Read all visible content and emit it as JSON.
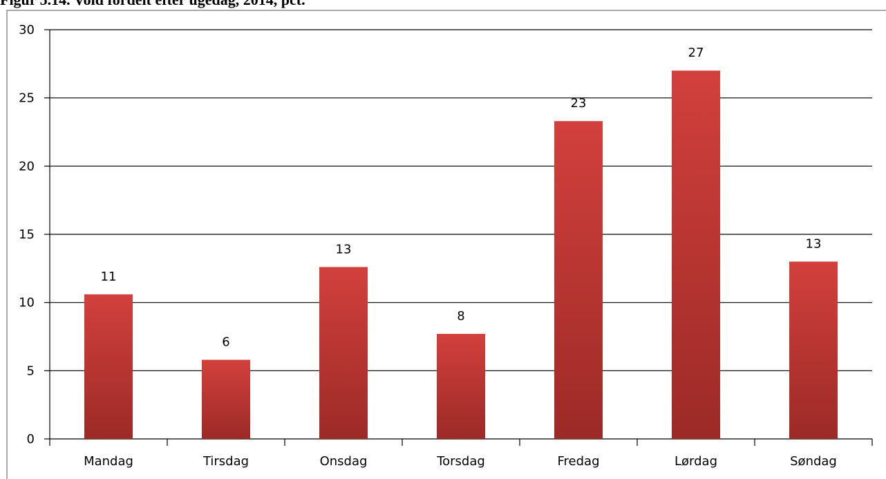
{
  "chart_data": {
    "type": "bar",
    "title": "Figur 5.14. Vold fordelt efter ugedag, 2014, pct.",
    "categories": [
      "Mandag",
      "Tirsdag",
      "Onsdag",
      "Torsdag",
      "Fredag",
      "Lørdag",
      "Søndag"
    ],
    "values": [
      10.6,
      5.8,
      12.6,
      7.7,
      23.3,
      27,
      13
    ],
    "value_labels": [
      "11",
      "6",
      "13",
      "8",
      "23",
      "27",
      "13"
    ],
    "color": "#c43a36",
    "ylim": [
      0,
      30
    ],
    "yticks": [
      0,
      5,
      10,
      15,
      20,
      25,
      30
    ],
    "grid": true
  }
}
